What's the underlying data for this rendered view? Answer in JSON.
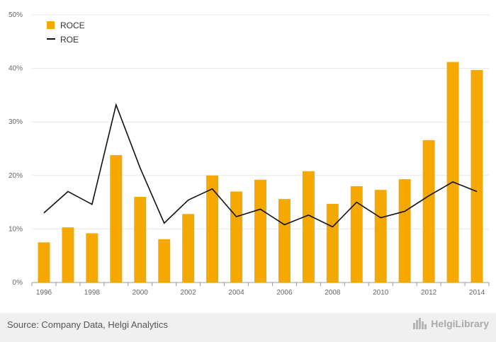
{
  "chart_data": {
    "type": "bar",
    "categories": [
      "1996",
      "1997",
      "1998",
      "1999",
      "2000",
      "2001",
      "2002",
      "2003",
      "2004",
      "2005",
      "2006",
      "2007",
      "2008",
      "2009",
      "2010",
      "2011",
      "2012",
      "2013",
      "2014"
    ],
    "x_tick_labels": [
      "1996",
      "1998",
      "2000",
      "2002",
      "2004",
      "2006",
      "2008",
      "2010",
      "2012",
      "2014"
    ],
    "series": [
      {
        "name": "ROCE",
        "type": "bar",
        "color": "#f5a800",
        "values": [
          7.5,
          10.3,
          9.2,
          23.8,
          16.0,
          8.1,
          12.8,
          20.0,
          17.0,
          19.2,
          15.6,
          20.8,
          14.7,
          18.0,
          17.3,
          19.3,
          26.6,
          41.2,
          39.7
        ]
      },
      {
        "name": "ROE",
        "type": "line",
        "color": "#111111",
        "values": [
          13.0,
          17.0,
          14.6,
          33.2,
          21.4,
          11.1,
          15.4,
          17.5,
          12.3,
          13.7,
          10.8,
          12.6,
          10.4,
          15.0,
          12.1,
          13.3,
          16.2,
          18.8,
          17.0
        ]
      }
    ],
    "ylim": [
      0,
      50
    ],
    "y_ticks": [
      "0%",
      "10%",
      "20%",
      "30%",
      "40%",
      "50%"
    ],
    "y_tick_values": [
      0,
      10,
      20,
      30,
      40,
      50
    ],
    "grid": true,
    "legend_position": "top-left",
    "xlabel": "",
    "ylabel": ""
  },
  "footer": {
    "source": "Source: Company Data, Helgi Analytics",
    "brand": "HelgiLibrary"
  }
}
